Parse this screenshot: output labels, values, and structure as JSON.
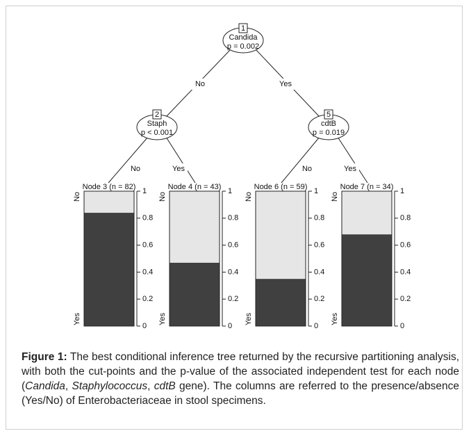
{
  "tree": {
    "nodes": [
      {
        "id": "1",
        "variable": "Candida",
        "p": "p = 0.002"
      },
      {
        "id": "2",
        "variable": "Staph",
        "p": "p < 0.001"
      },
      {
        "id": "5",
        "variable": "cdtB",
        "p": "p = 0.019"
      }
    ],
    "edges": [
      "No",
      "Yes",
      "No",
      "Yes",
      "No",
      "Yes"
    ]
  },
  "chart_data": [
    {
      "type": "bar",
      "title": "Node 3 (n = 82)",
      "series": [
        {
          "name": "Yes",
          "color": "#404040",
          "values": [
            0.84
          ]
        },
        {
          "name": "No",
          "color": "#e6e6e6",
          "values": [
            0.16
          ]
        }
      ],
      "ylim": [
        0,
        1
      ],
      "yticks": [
        0,
        0.2,
        0.4,
        0.6,
        0.8,
        1
      ]
    },
    {
      "type": "bar",
      "title": "Node 4 (n = 43)",
      "series": [
        {
          "name": "Yes",
          "color": "#404040",
          "values": [
            0.47
          ]
        },
        {
          "name": "No",
          "color": "#e6e6e6",
          "values": [
            0.53
          ]
        }
      ],
      "ylim": [
        0,
        1
      ],
      "yticks": [
        0,
        0.2,
        0.4,
        0.6,
        0.8,
        1
      ]
    },
    {
      "type": "bar",
      "title": "Node 6 (n = 59)",
      "series": [
        {
          "name": "Yes",
          "color": "#404040",
          "values": [
            0.35
          ]
        },
        {
          "name": "No",
          "color": "#e6e6e6",
          "values": [
            0.65
          ]
        }
      ],
      "ylim": [
        0,
        1
      ],
      "yticks": [
        0,
        0.2,
        0.4,
        0.6,
        0.8,
        1
      ]
    },
    {
      "type": "bar",
      "title": "Node 7 (n = 34)",
      "series": [
        {
          "name": "Yes",
          "color": "#404040",
          "values": [
            0.68
          ]
        },
        {
          "name": "No",
          "color": "#e6e6e6",
          "values": [
            0.32
          ]
        }
      ],
      "ylim": [
        0,
        1
      ],
      "yticks": [
        0,
        0.2,
        0.4,
        0.6,
        0.8,
        1
      ]
    }
  ],
  "caption": {
    "label": "Figure 1:",
    "parts": [
      " The best conditional inference tree returned by the recursive partitioning analysis, with both the cut-points and the p-value of the associated independent test for each node (",
      "Candida",
      ", ",
      "Staphylococcus",
      ", ",
      "cdtB",
      " gene). The columns are referred to the presence/absence (Yes/No) of Enterobacteriaceae in stool specimens."
    ]
  }
}
